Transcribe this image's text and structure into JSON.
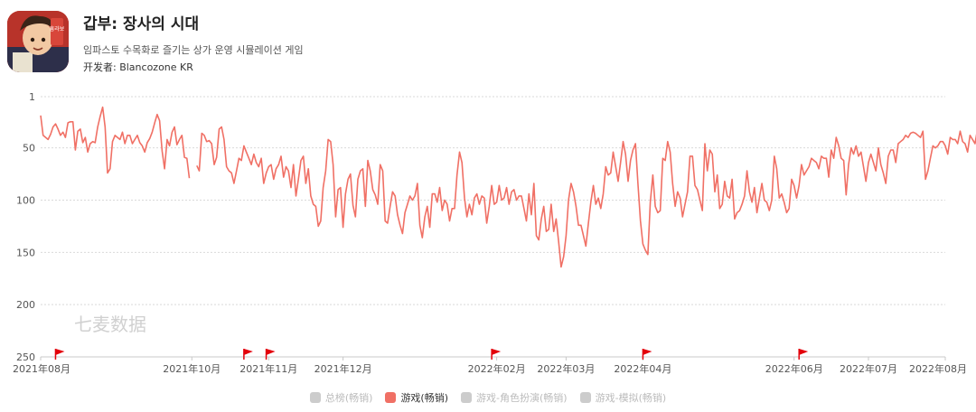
{
  "app": {
    "title": "갑부: 장사의 시대",
    "subtitle": "임파스토 수목화로 즐기는 상가 운영 시뮬레이션 게임",
    "developer": "开发者: Blancozone KR",
    "icon": "app-icon",
    "icon_text": "흥라보"
  },
  "watermark": "七麦数据",
  "colors": {
    "line": "#f07065",
    "flag": "#e3000b",
    "grid": "#d9d9d9",
    "axis_text": "#555555",
    "legend_inactive": "#cccccc"
  },
  "chart_data": {
    "type": "line",
    "title": "",
    "xlabel": "",
    "ylabel": "",
    "y_inverted": true,
    "ylim": [
      1,
      250
    ],
    "yticks": [
      1,
      50,
      100,
      150,
      200,
      250
    ],
    "x_range": [
      "2021-08-01",
      "2022-08-01"
    ],
    "xticks": [
      {
        "date": "2021-08-01",
        "label": "2021年08月"
      },
      {
        "date": "2021-10-01",
        "label": "2021年10月"
      },
      {
        "date": "2021-11-01",
        "label": "2021年11月"
      },
      {
        "date": "2021-12-01",
        "label": "2021年12月"
      },
      {
        "date": "2022-02-01",
        "label": "2022年02月"
      },
      {
        "date": "2022-03-01",
        "label": "2022年03月"
      },
      {
        "date": "2022-04-01",
        "label": "2022年04月"
      },
      {
        "date": "2022-06-01",
        "label": "2022年06月"
      },
      {
        "date": "2022-07-01",
        "label": "2022年07月"
      },
      {
        "date": "2022-08-01",
        "label": "2022年08月"
      }
    ],
    "event_flags": [
      "2021-08-07",
      "2021-10-22",
      "2021-10-31",
      "2022-01-30",
      "2022-04-01",
      "2022-06-03"
    ],
    "grid": true,
    "legend_position": "bottom",
    "legend": [
      {
        "name": "总榜(畅销)",
        "active": false,
        "color": "#cccccc"
      },
      {
        "name": "游戏(畅销)",
        "active": true,
        "color": "#f07065"
      },
      {
        "name": "游戏-角色扮演(畅销)",
        "active": false,
        "color": "#cccccc"
      },
      {
        "name": "游戏-模拟(畅销)",
        "active": false,
        "color": "#cccccc"
      }
    ],
    "series": [
      {
        "name": "游戏(畅销)",
        "active": true,
        "segments": [
          {
            "start": "2021-08-01",
            "values": [
              19,
              38,
              40,
              42,
              37,
              30,
              27,
              32,
              38,
              35,
              40,
              26,
              25,
              25,
              52,
              34,
              32,
              45,
              40,
              54,
              46,
              44,
              45,
              30,
              20,
              11,
              30,
              74,
              70,
              44,
              38,
              40,
              42,
              35,
              46,
              38,
              38,
              46,
              42,
              38,
              45,
              48,
              54,
              45,
              41,
              35,
              26,
              18,
              24,
              53,
              70,
              42,
              48,
              35,
              30,
              47,
              42,
              38,
              59,
              60,
              79
            ]
          },
          {
            "start": "2021-10-03",
            "values": [
              67,
              72,
              36,
              38,
              44,
              43,
              46,
              66,
              59,
              32,
              30,
              42,
              68,
              72,
              74,
              84,
              72,
              60,
              62,
              48,
              54,
              60,
              66,
              56,
              64,
              68,
              60,
              84,
              74,
              68,
              66,
              80,
              70,
              66,
              58,
              78,
              68,
              72,
              88,
              66,
              96,
              80,
              62,
              58,
              84,
              70,
              96,
              104,
              106,
              125,
              120,
              88,
              72,
              42,
              44,
              66,
              116,
              90,
              88,
              126,
              94,
              80,
              75,
              105,
              116,
              80,
              72,
              70,
              106,
              62,
              72,
              90,
              95,
              104,
              66,
              72,
              120,
              122,
              106,
              92,
              96,
              114,
              124,
              132,
              112,
              104,
              96,
              100,
              96,
              84,
              124,
              136,
              116,
              106,
              126,
              94,
              94,
              102,
              88,
              110,
              100,
              104,
              120,
              108,
              108,
              76,
              54,
              64,
              98,
              116,
              104,
              114,
              98,
              94,
              104,
              96,
              98,
              122,
              106,
              86,
              104,
              102,
              86,
              100,
              98,
              88,
              104,
              92,
              90,
              100,
              96,
              96,
              108,
              120,
              94,
              114,
              84,
              134,
              138,
              118,
              106,
              130,
              128,
              104,
              130,
              118,
              140,
              164,
              154,
              134,
              100,
              84,
              92,
              106,
              124,
              124,
              134,
              144,
              122,
              102,
              86,
              104,
              98,
              108,
              94,
              68,
              76,
              74,
              54,
              68,
              82,
              64,
              44,
              56,
              82,
              62,
              52,
              46,
              84,
              120,
              142,
              148,
              152,
              102,
              76,
              106,
              112,
              110,
              60,
              62,
              44,
              54,
              84,
              106,
              92,
              98,
              116,
              104,
              92,
              58,
              58,
              86,
              90,
              100,
              110,
              46,
              72,
              52,
              56,
              92,
              76,
              108,
              104,
              82,
              96,
              98,
              80,
              118,
              112,
              110,
              104,
              96,
              72,
              92,
              102,
              88,
              112,
              98,
              84,
              100,
              102,
              110,
              100,
              58,
              70,
              98,
              94,
              102,
              112,
              108,
              80,
              86,
              98,
              86,
              66,
              76,
              72,
              68,
              60,
              62,
              64,
              70,
              58,
              60,
              60,
              78,
              52,
              60,
              40,
              48,
              60,
              62,
              95,
              66,
              50,
              56,
              48,
              58,
              54,
              68,
              82,
              64,
              56,
              64,
              72,
              50,
              66,
              74,
              84,
              58,
              52,
              52,
              64,
              46,
              44,
              42,
              38,
              40,
              36,
              35,
              36,
              38,
              40,
              34,
              80,
              72,
              60,
              48,
              50,
              48,
              44,
              44,
              48,
              56,
              40,
              42,
              42,
              46,
              34,
              44,
              46,
              54,
              38,
              42,
              46,
              32,
              28,
              34,
              30,
              30,
              34,
              28,
              36,
              40,
              32,
              38,
              36,
              36,
              28,
              42,
              48,
              48,
              44,
              40,
              40,
              45
            ]
          }
        ]
      }
    ]
  }
}
